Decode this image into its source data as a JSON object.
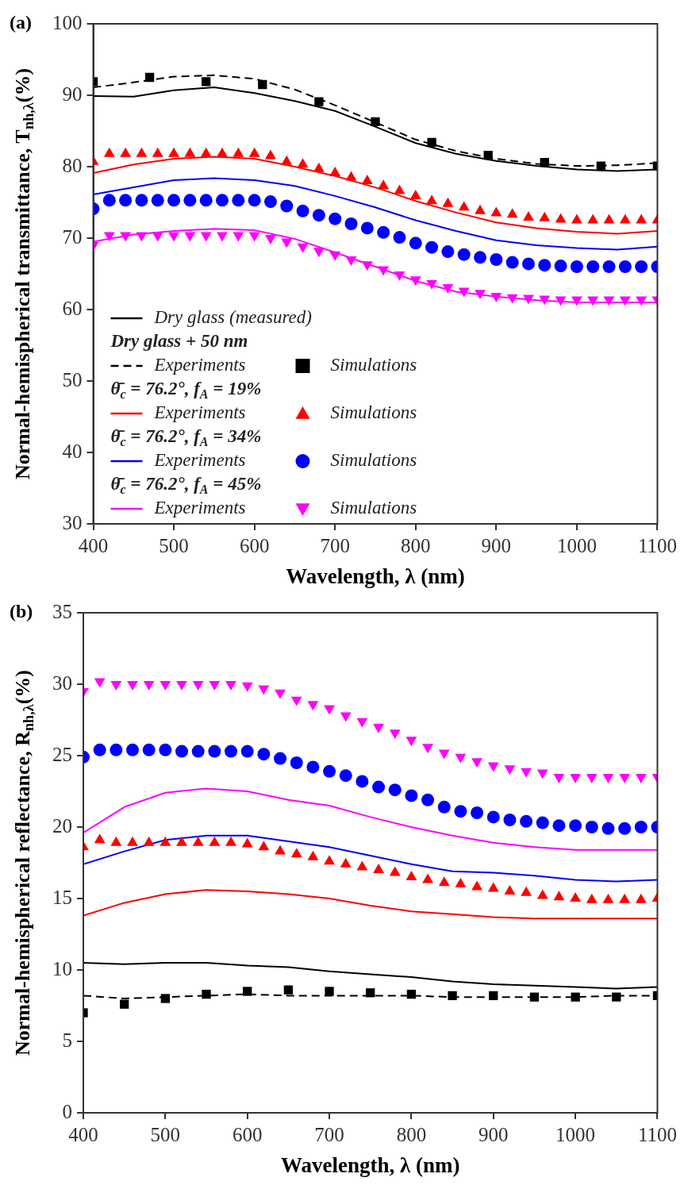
{
  "chart_data": [
    {
      "type": "line",
      "title": "(a)",
      "xlabel": "Wavelength, λ (nm)",
      "ylabel": "Normal-hemispherical transmittance, T$_{nh,λ}$(%)",
      "xlim": [
        400,
        1100
      ],
      "xticks": [
        400,
        500,
        600,
        700,
        800,
        900,
        1000,
        1100
      ],
      "ylim": [
        30,
        100
      ],
      "yticks": [
        30,
        40,
        50,
        60,
        70,
        80,
        90,
        100
      ],
      "grid": false,
      "legend": "bottom left",
      "annotations": [
        "Dry glass + 50 nm",
        "θ̄$_{c}$ = 76.2°, f$_{A}$ = 19%",
        "θ̄$_{c}$ = 76.2°, f$_{A}$ = 34%",
        "θ̄$_{c}$ = 76.2°, f$_{A}$ = 45%"
      ],
      "series": [
        {
          "name": "Dry glass (measured)",
          "type": "line",
          "color": "#000000",
          "line_style": "solid",
          "x": [
            400,
            450,
            500,
            550,
            600,
            650,
            700,
            750,
            800,
            850,
            900,
            950,
            1000,
            1050,
            1100
          ],
          "values": [
            89.9,
            89.8,
            90.7,
            91.1,
            90.3,
            89.2,
            87.8,
            85.6,
            83.3,
            81.8,
            80.8,
            80.1,
            79.6,
            79.4,
            79.6
          ]
        },
        {
          "name": "Experiments",
          "type": "line",
          "color": "#000000",
          "line_style": "dashed",
          "x": [
            400,
            450,
            500,
            550,
            600,
            650,
            700,
            750,
            800,
            850,
            900,
            950,
            1000,
            1050,
            1100
          ],
          "values": [
            91.1,
            91.8,
            92.6,
            92.8,
            92.3,
            90.8,
            88.6,
            86.2,
            83.8,
            82.2,
            81.1,
            80.4,
            80.1,
            80.2,
            80.5
          ]
        },
        {
          "name": "Simulations",
          "type": "scatter",
          "color": "#000000",
          "marker": "square",
          "x": [
            400,
            470,
            540,
            610,
            680,
            750,
            820,
            890,
            960,
            1030,
            1100
          ],
          "values": [
            91.9,
            92.5,
            91.9,
            91.5,
            89.1,
            86.3,
            83.4,
            81.6,
            80.6,
            80.1,
            80.1
          ]
        },
        {
          "name": "Experiments",
          "type": "line",
          "color": "#ff0000",
          "line_style": "solid",
          "x": [
            400,
            450,
            500,
            550,
            600,
            650,
            700,
            750,
            800,
            850,
            900,
            950,
            1000,
            1050,
            1100
          ],
          "values": [
            79.1,
            80.3,
            81.1,
            81.4,
            81.1,
            80.0,
            78.7,
            77.1,
            75.2,
            73.6,
            72.2,
            71.4,
            70.9,
            70.6,
            71.0
          ]
        },
        {
          "name": "Simulations",
          "type": "scatter",
          "color": "#ff0000",
          "marker": "triangle",
          "x": [
            400,
            420,
            440,
            460,
            480,
            500,
            520,
            540,
            560,
            580,
            600,
            620,
            640,
            660,
            680,
            700,
            720,
            740,
            760,
            780,
            800,
            820,
            840,
            860,
            880,
            900,
            920,
            940,
            960,
            980,
            1000,
            1020,
            1040,
            1060,
            1080,
            1100
          ],
          "values": [
            80.7,
            81.8,
            81.8,
            81.8,
            81.8,
            81.8,
            81.8,
            81.8,
            81.8,
            81.8,
            81.8,
            81.5,
            80.7,
            80.3,
            79.7,
            79.1,
            78.5,
            78.0,
            77.3,
            76.6,
            75.9,
            75.2,
            74.8,
            74.3,
            73.8,
            73.5,
            73.3,
            72.9,
            72.8,
            72.6,
            72.5,
            72.5,
            72.5,
            72.5,
            72.5,
            72.5
          ]
        },
        {
          "name": "Experiments",
          "type": "line",
          "color": "#0000ff",
          "line_style": "solid",
          "x": [
            400,
            450,
            500,
            550,
            600,
            650,
            700,
            750,
            800,
            850,
            900,
            950,
            1000,
            1050,
            1100
          ],
          "values": [
            76.1,
            77.1,
            78.1,
            78.4,
            78.1,
            77.3,
            75.9,
            74.3,
            72.5,
            71.0,
            69.7,
            69.0,
            68.6,
            68.4,
            68.8
          ]
        },
        {
          "name": "Simulations",
          "type": "scatter",
          "color": "#0000ff",
          "marker": "circle",
          "x": [
            400,
            420,
            440,
            460,
            480,
            500,
            520,
            540,
            560,
            580,
            600,
            620,
            640,
            660,
            680,
            700,
            720,
            740,
            760,
            780,
            800,
            820,
            840,
            860,
            880,
            900,
            920,
            940,
            960,
            980,
            1000,
            1020,
            1040,
            1060,
            1080,
            1100
          ],
          "values": [
            74.1,
            75.3,
            75.3,
            75.3,
            75.3,
            75.3,
            75.3,
            75.3,
            75.3,
            75.3,
            75.3,
            75.1,
            74.5,
            73.8,
            73.2,
            72.7,
            72.0,
            71.4,
            70.8,
            70.1,
            69.3,
            68.7,
            68.1,
            67.7,
            67.3,
            67.0,
            66.6,
            66.4,
            66.2,
            66.1,
            66.0,
            66.0,
            66.0,
            66.0,
            66.0,
            66.0
          ]
        },
        {
          "name": "Experiments",
          "type": "line",
          "color": "#ff00ff",
          "line_style": "solid",
          "x": [
            400,
            450,
            500,
            550,
            600,
            650,
            700,
            750,
            800,
            850,
            900,
            950,
            1000,
            1050,
            1100
          ],
          "values": [
            69.5,
            70.5,
            71.0,
            71.3,
            71.1,
            69.9,
            68.0,
            66.0,
            64.0,
            62.5,
            61.8,
            61.3,
            61.0,
            61.0,
            61.0
          ]
        },
        {
          "name": "Simulations",
          "type": "scatter",
          "color": "#ff00ff",
          "marker": "triangle-down",
          "x": [
            400,
            420,
            440,
            460,
            480,
            500,
            520,
            540,
            560,
            580,
            600,
            620,
            640,
            660,
            680,
            700,
            720,
            740,
            760,
            780,
            800,
            820,
            840,
            860,
            880,
            900,
            920,
            940,
            960,
            980,
            1000,
            1020,
            1040,
            1060,
            1080,
            1100
          ],
          "values": [
            69.0,
            70.4,
            70.4,
            70.4,
            70.4,
            70.4,
            70.4,
            70.4,
            70.4,
            70.4,
            70.4,
            70.0,
            69.5,
            68.8,
            68.2,
            67.7,
            67.0,
            66.3,
            65.6,
            64.9,
            64.2,
            63.7,
            63.1,
            62.6,
            62.3,
            61.9,
            61.7,
            61.6,
            61.5,
            61.4,
            61.4,
            61.4,
            61.4,
            61.4,
            61.4,
            61.4
          ]
        }
      ]
    },
    {
      "type": "line",
      "title": "(b)",
      "xlabel": "Wavelength, λ (nm)",
      "ylabel": "Normal-hemispherical reflectance, R$_{nh,λ}$(%)",
      "xlim": [
        400,
        1100
      ],
      "xticks": [
        400,
        500,
        600,
        700,
        800,
        900,
        1000,
        1100
      ],
      "ylim": [
        0,
        35
      ],
      "yticks": [
        0,
        5,
        10,
        15,
        20,
        25,
        30,
        35
      ],
      "grid": false,
      "series": [
        {
          "type": "line",
          "color": "#000000",
          "line_style": "solid",
          "x": [
            400,
            450,
            500,
            550,
            600,
            650,
            700,
            750,
            800,
            850,
            900,
            950,
            1000,
            1050,
            1100
          ],
          "values": [
            10.5,
            10.4,
            10.5,
            10.5,
            10.3,
            10.2,
            9.9,
            9.7,
            9.5,
            9.2,
            9.0,
            8.9,
            8.8,
            8.7,
            8.8
          ]
        },
        {
          "type": "line",
          "color": "#000000",
          "line_style": "dashed",
          "x": [
            400,
            450,
            500,
            550,
            600,
            650,
            700,
            750,
            800,
            850,
            900,
            950,
            1000,
            1050,
            1100
          ],
          "values": [
            8.2,
            8.0,
            8.1,
            8.2,
            8.3,
            8.2,
            8.2,
            8.2,
            8.2,
            8.1,
            8.1,
            8.1,
            8.1,
            8.2,
            8.2
          ]
        },
        {
          "type": "scatter",
          "color": "#000000",
          "marker": "square",
          "x": [
            400,
            450,
            500,
            550,
            600,
            650,
            700,
            750,
            800,
            850,
            900,
            950,
            1000,
            1050,
            1100
          ],
          "values": [
            7.0,
            7.6,
            8.0,
            8.3,
            8.5,
            8.6,
            8.5,
            8.4,
            8.3,
            8.2,
            8.2,
            8.1,
            8.1,
            8.1,
            8.2
          ]
        },
        {
          "type": "line",
          "color": "#ff0000",
          "line_style": "solid",
          "x": [
            400,
            450,
            500,
            550,
            600,
            650,
            700,
            750,
            800,
            850,
            900,
            950,
            1000,
            1050,
            1100
          ],
          "values": [
            13.8,
            14.7,
            15.3,
            15.6,
            15.5,
            15.3,
            15.0,
            14.5,
            14.1,
            13.9,
            13.7,
            13.6,
            13.6,
            13.6,
            13.6
          ]
        },
        {
          "type": "scatter",
          "color": "#ff0000",
          "marker": "triangle",
          "x": [
            400,
            420,
            440,
            460,
            480,
            500,
            520,
            540,
            560,
            580,
            600,
            620,
            640,
            660,
            680,
            700,
            720,
            740,
            760,
            780,
            800,
            820,
            840,
            860,
            880,
            900,
            920,
            940,
            960,
            980,
            1000,
            1020,
            1040,
            1060,
            1080,
            1100
          ],
          "values": [
            18.6,
            19.1,
            18.9,
            18.9,
            18.9,
            18.9,
            18.9,
            18.9,
            18.9,
            18.9,
            18.8,
            18.6,
            18.3,
            18.1,
            17.9,
            17.6,
            17.4,
            17.2,
            17.0,
            16.8,
            16.5,
            16.3,
            16.1,
            16.0,
            15.8,
            15.7,
            15.5,
            15.4,
            15.2,
            15.1,
            15.0,
            14.9,
            14.9,
            14.9,
            14.9,
            15.0
          ]
        },
        {
          "type": "line",
          "color": "#0000ff",
          "line_style": "solid",
          "x": [
            400,
            450,
            500,
            550,
            600,
            650,
            700,
            750,
            800,
            850,
            900,
            950,
            1000,
            1050,
            1100
          ],
          "values": [
            17.4,
            18.3,
            19.1,
            19.4,
            19.4,
            19.0,
            18.6,
            18.0,
            17.4,
            16.9,
            16.8,
            16.6,
            16.3,
            16.2,
            16.3
          ]
        },
        {
          "type": "scatter",
          "color": "#0000ff",
          "marker": "circle",
          "x": [
            400,
            420,
            440,
            460,
            480,
            500,
            520,
            540,
            560,
            580,
            600,
            620,
            640,
            660,
            680,
            700,
            720,
            740,
            760,
            780,
            800,
            820,
            840,
            860,
            880,
            900,
            920,
            940,
            960,
            980,
            1000,
            1020,
            1040,
            1060,
            1080,
            1100
          ],
          "values": [
            24.9,
            25.4,
            25.4,
            25.4,
            25.4,
            25.4,
            25.3,
            25.3,
            25.3,
            25.3,
            25.3,
            25.1,
            24.8,
            24.5,
            24.2,
            23.9,
            23.6,
            23.2,
            22.8,
            22.6,
            22.2,
            21.9,
            21.4,
            21.1,
            21.0,
            20.7,
            20.5,
            20.4,
            20.3,
            20.1,
            20.1,
            20.0,
            19.9,
            19.9,
            20.0,
            20.0
          ]
        },
        {
          "type": "line",
          "color": "#ff00ff",
          "line_style": "solid",
          "x": [
            400,
            450,
            500,
            550,
            600,
            650,
            700,
            750,
            800,
            850,
            900,
            950,
            1000,
            1050,
            1100
          ],
          "values": [
            19.6,
            21.4,
            22.4,
            22.7,
            22.5,
            21.9,
            21.5,
            20.7,
            20.0,
            19.4,
            18.9,
            18.6,
            18.4,
            18.4,
            18.4
          ]
        },
        {
          "type": "scatter",
          "color": "#ff00ff",
          "marker": "triangle-down",
          "x": [
            400,
            420,
            440,
            460,
            480,
            500,
            520,
            540,
            560,
            580,
            600,
            620,
            640,
            660,
            680,
            700,
            720,
            740,
            760,
            780,
            800,
            820,
            840,
            860,
            880,
            900,
            920,
            940,
            960,
            980,
            1000,
            1020,
            1040,
            1060,
            1080,
            1100
          ],
          "values": [
            29.5,
            30.2,
            30.0,
            30.0,
            30.0,
            30.0,
            30.0,
            30.0,
            30.0,
            30.0,
            29.9,
            29.7,
            29.4,
            28.9,
            28.6,
            28.3,
            27.8,
            27.4,
            27.0,
            26.6,
            26.1,
            25.6,
            25.2,
            24.9,
            24.6,
            24.3,
            24.1,
            23.9,
            23.8,
            23.5,
            23.5,
            23.5,
            23.5,
            23.5,
            23.5,
            23.5
          ]
        }
      ]
    }
  ]
}
